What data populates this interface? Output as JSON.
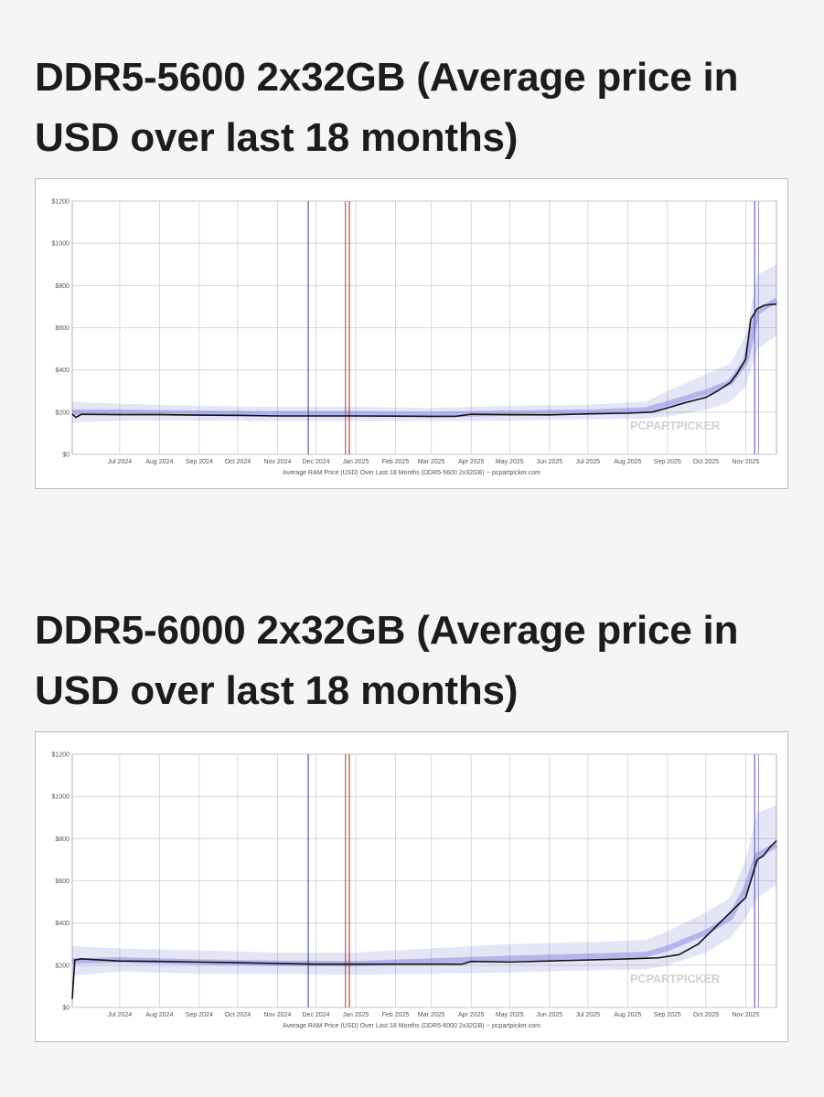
{
  "charts": [
    {
      "heading": "DDR5-5600 2x32GB (Average price in USD over last 18 months)",
      "caption": "Average RAM Price (USD) Over Last 18 Months (DDR5-5600 2x32GB) -- pcpartpicker.com",
      "watermark": "PCPARTPICKER"
    },
    {
      "heading": "DDR5-6000 2x32GB (Average price in USD over last 18 months)",
      "caption": "Average RAM Price (USD) Over Last 18 Months (DDR5-6000 2x32GB) -- pcpartpicker.com",
      "watermark": "PCPARTPICKER"
    }
  ],
  "chart_data": [
    {
      "type": "line",
      "title": "DDR5-5600 2x32GB (Average price in USD over last 18 months)",
      "xlabel": "Average RAM Price (USD) Over Last 18 Months (DDR5-5600 2x32GB) -- pcpartpicker.com",
      "ylabel": "",
      "ylim": [
        0,
        1200
      ],
      "xlim": [
        "2024-05-25",
        "2025-11-25"
      ],
      "y_ticks": [
        "$0",
        "$200",
        "$400",
        "$600",
        "$800",
        "$1000",
        "$1200"
      ],
      "y_tick_values": [
        0,
        200,
        400,
        600,
        800,
        1000,
        1200
      ],
      "x_ticks": [
        "Jul 2024",
        "Aug 2024",
        "Sep 2024",
        "Oct 2024",
        "Nov 2024",
        "Dec 2024",
        "Jan 2025",
        "Feb 2025",
        "Mar 2025",
        "Apr 2025",
        "May 2025",
        "Jun 2025",
        "Jul 2025",
        "Aug 2025",
        "Sep 2025",
        "Oct 2025",
        "Nov 2025"
      ],
      "x_tick_dates": [
        "2024-07-01",
        "2024-08-01",
        "2024-09-01",
        "2024-10-01",
        "2024-11-01",
        "2024-12-01",
        "2025-01-01",
        "2025-02-01",
        "2025-03-01",
        "2025-04-01",
        "2025-05-01",
        "2025-06-01",
        "2025-07-01",
        "2025-08-01",
        "2025-09-01",
        "2025-10-01",
        "2025-11-01"
      ],
      "vertical_markers": [
        {
          "date": "2024-11-25",
          "color": "#2c3a7a"
        },
        {
          "date": "2024-12-24",
          "color": "#c0392b"
        },
        {
          "date": "2024-12-27",
          "color": "#8b2a2a"
        },
        {
          "date": "2025-11-08",
          "color": "#4b4bb0"
        },
        {
          "date": "2025-11-11",
          "color": "#9090c8"
        }
      ],
      "grid": true,
      "series": [
        {
          "color": "#111111",
          "x": [
            "2024-05-25",
            "2024-05-28",
            "2024-06-01",
            "2024-07-01",
            "2024-08-01",
            "2024-09-01",
            "2024-10-01",
            "2024-11-01",
            "2024-12-01",
            "2025-01-01",
            "2025-02-01",
            "2025-03-01",
            "2025-03-20",
            "2025-04-01",
            "2025-05-01",
            "2025-06-01",
            "2025-07-01",
            "2025-08-01",
            "2025-08-20",
            "2025-09-01",
            "2025-09-15",
            "2025-10-01",
            "2025-10-10",
            "2025-10-20",
            "2025-10-25",
            "2025-11-01",
            "2025-11-05",
            "2025-11-10",
            "2025-11-15",
            "2025-11-20",
            "2025-11-25"
          ],
          "y": [
            190,
            175,
            190,
            188,
            188,
            186,
            185,
            182,
            182,
            182,
            181,
            180,
            180,
            190,
            188,
            187,
            192,
            195,
            200,
            220,
            245,
            270,
            300,
            340,
            380,
            450,
            640,
            690,
            705,
            710,
            712
          ]
        }
      ],
      "price_range_band": {
        "color": "#5b5bd6",
        "x": [
          "2024-05-25",
          "2024-07-01",
          "2024-09-01",
          "2024-11-01",
          "2025-01-01",
          "2025-03-01",
          "2025-05-01",
          "2025-07-01",
          "2025-08-15",
          "2025-09-01",
          "2025-10-01",
          "2025-10-20",
          "2025-11-01",
          "2025-11-10",
          "2025-11-25"
        ],
        "low": [
          150,
          160,
          160,
          158,
          158,
          158,
          160,
          165,
          170,
          180,
          210,
          250,
          320,
          500,
          560
        ],
        "high": [
          250,
          240,
          230,
          225,
          225,
          220,
          230,
          235,
          250,
          300,
          380,
          430,
          560,
          850,
          900
        ]
      }
    },
    {
      "type": "line",
      "title": "DDR5-6000 2x32GB (Average price in USD over last 18 months)",
      "xlabel": "Average RAM Price (USD) Over Last 18 Months (DDR5-6000 2x32GB) -- pcpartpicker.com",
      "ylabel": "",
      "ylim": [
        0,
        1200
      ],
      "xlim": [
        "2024-05-25",
        "2025-11-25"
      ],
      "y_ticks": [
        "$0",
        "$200",
        "$400",
        "$600",
        "$800",
        "$1000",
        "$1200"
      ],
      "y_tick_values": [
        0,
        200,
        400,
        600,
        800,
        1000,
        1200
      ],
      "x_ticks": [
        "Jul 2024",
        "Aug 2024",
        "Sep 2024",
        "Oct 2024",
        "Nov 2024",
        "Dec 2024",
        "Jan 2025",
        "Feb 2025",
        "Mar 2025",
        "Apr 2025",
        "May 2025",
        "Jun 2025",
        "Jul 2025",
        "Aug 2025",
        "Sep 2025",
        "Oct 2025",
        "Nov 2025"
      ],
      "x_tick_dates": [
        "2024-07-01",
        "2024-08-01",
        "2024-09-01",
        "2024-10-01",
        "2024-11-01",
        "2024-12-01",
        "2025-01-01",
        "2025-02-01",
        "2025-03-01",
        "2025-04-01",
        "2025-05-01",
        "2025-06-01",
        "2025-07-01",
        "2025-08-01",
        "2025-09-01",
        "2025-10-01",
        "2025-11-01"
      ],
      "vertical_markers": [
        {
          "date": "2024-11-25",
          "color": "#2c3a7a"
        },
        {
          "date": "2024-12-24",
          "color": "#c0392b"
        },
        {
          "date": "2024-12-27",
          "color": "#8b2a2a"
        },
        {
          "date": "2025-11-08",
          "color": "#4b4bb0"
        },
        {
          "date": "2025-11-11",
          "color": "#9090c8"
        }
      ],
      "grid": true,
      "series": [
        {
          "color": "#111111",
          "x": [
            "2024-05-25",
            "2024-05-27",
            "2024-06-01",
            "2024-07-01",
            "2024-08-01",
            "2024-09-01",
            "2024-10-01",
            "2024-11-01",
            "2024-12-01",
            "2025-01-01",
            "2025-02-01",
            "2025-03-01",
            "2025-03-25",
            "2025-04-01",
            "2025-05-01",
            "2025-06-01",
            "2025-07-01",
            "2025-08-01",
            "2025-08-25",
            "2025-09-10",
            "2025-09-25",
            "2025-10-05",
            "2025-10-15",
            "2025-10-25",
            "2025-11-01",
            "2025-11-05",
            "2025-11-10",
            "2025-11-15",
            "2025-11-20",
            "2025-11-25"
          ],
          "y": [
            40,
            225,
            230,
            220,
            218,
            215,
            212,
            208,
            205,
            205,
            205,
            205,
            205,
            218,
            215,
            220,
            225,
            230,
            235,
            250,
            300,
            360,
            420,
            480,
            520,
            600,
            700,
            720,
            760,
            790
          ]
        }
      ],
      "price_range_band": {
        "color": "#5b5bd6",
        "x": [
          "2024-05-25",
          "2024-07-01",
          "2024-09-01",
          "2024-11-01",
          "2025-01-01",
          "2025-03-01",
          "2025-05-01",
          "2025-07-01",
          "2025-08-15",
          "2025-09-01",
          "2025-10-01",
          "2025-10-20",
          "2025-11-01",
          "2025-11-10",
          "2025-11-25"
        ],
        "low": [
          150,
          170,
          160,
          158,
          155,
          160,
          165,
          175,
          180,
          200,
          260,
          330,
          420,
          520,
          580
        ],
        "high": [
          290,
          280,
          270,
          260,
          260,
          280,
          300,
          310,
          320,
          360,
          450,
          520,
          700,
          920,
          960
        ]
      }
    }
  ]
}
